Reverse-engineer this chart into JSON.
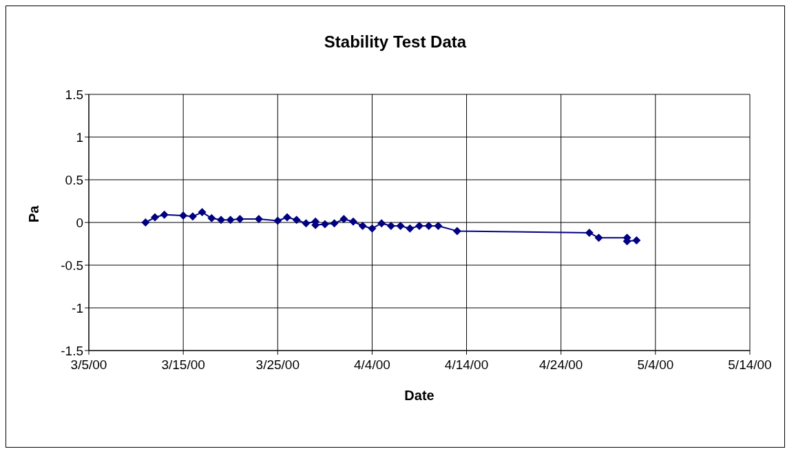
{
  "chart_data": {
    "type": "line",
    "title": "Stability Test Data",
    "xlabel": "Date",
    "ylabel": "Pa",
    "x": [
      "2000-03-11",
      "2000-03-12",
      "2000-03-13",
      "2000-03-15",
      "2000-03-16",
      "2000-03-17",
      "2000-03-18",
      "2000-03-19",
      "2000-03-20",
      "2000-03-21",
      "2000-03-23",
      "2000-03-25",
      "2000-03-26",
      "2000-03-27",
      "2000-03-28",
      "2000-03-29",
      "2000-03-29",
      "2000-03-30",
      "2000-03-31",
      "2000-04-01",
      "2000-04-02",
      "2000-04-03",
      "2000-04-04",
      "2000-04-05",
      "2000-04-06",
      "2000-04-07",
      "2000-04-08",
      "2000-04-09",
      "2000-04-10",
      "2000-04-11",
      "2000-04-13",
      "2000-04-27",
      "2000-04-28",
      "2000-05-01",
      "2000-05-01",
      "2000-05-02"
    ],
    "series": [
      {
        "color": "#000080",
        "values": [
          0.0,
          0.06,
          0.09,
          0.08,
          0.07,
          0.12,
          0.05,
          0.03,
          0.03,
          0.04,
          0.04,
          0.02,
          0.06,
          0.03,
          -0.01,
          0.01,
          -0.03,
          -0.02,
          -0.01,
          0.04,
          0.01,
          -0.04,
          -0.07,
          -0.01,
          -0.04,
          -0.04,
          -0.07,
          -0.04,
          -0.04,
          -0.04,
          -0.1,
          -0.12,
          -0.18,
          -0.18,
          -0.22,
          -0.21
        ]
      }
    ],
    "xlim": [
      "2000-03-05",
      "2000-05-14"
    ],
    "xticks": [
      {
        "value": "2000-03-05",
        "label": "3/5/00"
      },
      {
        "value": "2000-03-15",
        "label": "3/15/00"
      },
      {
        "value": "2000-03-25",
        "label": "3/25/00"
      },
      {
        "value": "2000-04-04",
        "label": "4/4/00"
      },
      {
        "value": "2000-04-14",
        "label": "4/14/00"
      },
      {
        "value": "2000-04-24",
        "label": "4/24/00"
      },
      {
        "value": "2000-05-04",
        "label": "5/4/00"
      },
      {
        "value": "2000-05-14",
        "label": "5/14/00"
      }
    ],
    "ylim": [
      -1.5,
      1.5
    ],
    "yticks": [
      -1.5,
      -1,
      -0.5,
      0,
      0.5,
      1,
      1.5
    ],
    "grid": true,
    "marker": "diamond",
    "line_style": "solid"
  }
}
